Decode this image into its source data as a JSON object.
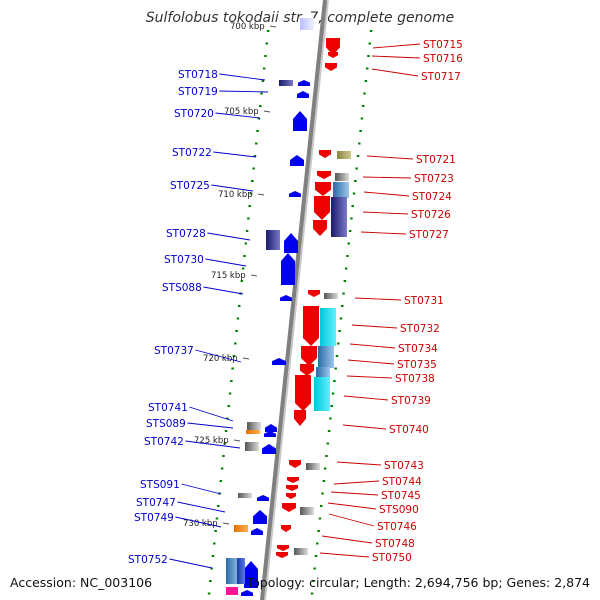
{
  "title": "Sulfolobus tokodaii str. 7, complete genome",
  "footer": {
    "accession": "Accession: NC_003106",
    "info": "Topology: circular; Length: 2,694,756 bp; Genes: 2,874"
  },
  "colors": {
    "plus_strand": "#0000ee",
    "minus_strand": "#ee0000",
    "backbone": "#808080",
    "tick": "#008000"
  },
  "scale_labels": [
    "700 kbp",
    "705 kbp",
    "710 kbp",
    "715 kbp",
    "720 kbp",
    "725 kbp",
    "730 kbp"
  ],
  "left_genes": [
    "ST0718",
    "ST0719",
    "ST0720",
    "ST0722",
    "ST0725",
    "ST0728",
    "ST0730",
    "STS088",
    "ST0737",
    "ST0741",
    "STS089",
    "ST0742",
    "STS091",
    "ST0747",
    "ST0749",
    "ST0752"
  ],
  "right_genes": [
    "ST0715",
    "ST0716",
    "ST0717",
    "ST0721",
    "ST0723",
    "ST0724",
    "ST0726",
    "ST0727",
    "ST0731",
    "ST0732",
    "ST0734",
    "ST0735",
    "ST0738",
    "ST0739",
    "ST0740",
    "ST0743",
    "ST0744",
    "ST0745",
    "STS090",
    "ST0746",
    "ST0748",
    "ST0750"
  ]
}
